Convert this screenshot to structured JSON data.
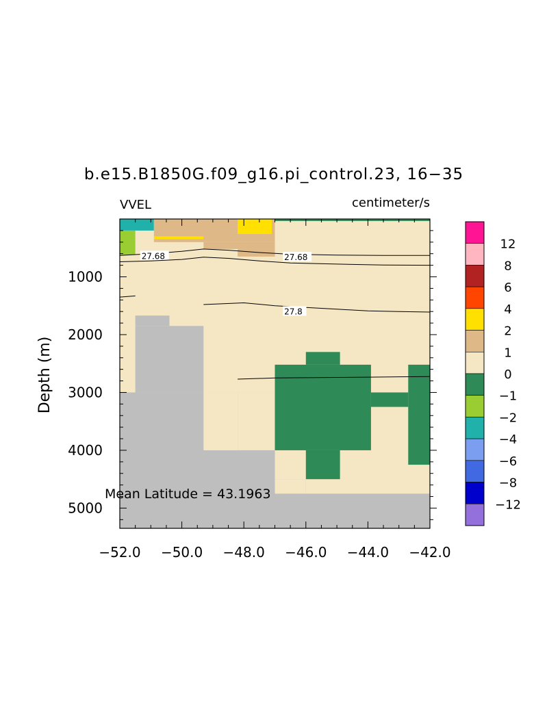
{
  "chart_data": {
    "type": "heatmap",
    "title": "b.e15.B1850G.f09_g16.pi_control.23, 16−35",
    "variable_label": "VVEL",
    "units_label": "centimeter/s",
    "ylabel": "Depth (m)",
    "xlabel": "",
    "annotation": "Mean Latitude = 43.1963",
    "xlim": [
      -52.0,
      -42.0
    ],
    "ylim": [
      5350,
      0
    ],
    "x_ticks": [
      -52.0,
      -50.0,
      -48.0,
      -46.0,
      -44.0,
      -42.0
    ],
    "x_tick_labels": [
      "−52.0",
      "−50.0",
      "−48.0",
      "−46.0",
      "−44.0",
      "−42.0"
    ],
    "y_ticks": [
      1000,
      2000,
      3000,
      4000,
      5000
    ],
    "y_tick_labels": [
      "1000",
      "2000",
      "3000",
      "4000",
      "5000"
    ],
    "grid": false,
    "background_value_color": "#f5e6c4",
    "missing_color": "#bebebe",
    "colorbar": {
      "labels": [
        "12",
        "8",
        "6",
        "4",
        "2",
        "1",
        "0",
        "−1",
        "−2",
        "−4",
        "−6",
        "−8",
        "−12"
      ],
      "colors": [
        "#ff1493",
        "#ffb6c1",
        "#b22222",
        "#ff4500",
        "#ffe000",
        "#deb887",
        "#f5e6c4",
        "#2e8b57",
        "#9acd32",
        "#20b2aa",
        "#7b9ef0",
        "#4169e1",
        "#0000cd",
        "#9370db"
      ]
    },
    "cells": [
      {
        "x": [
          -52.0,
          -50.9
        ],
        "y": [
          0,
          200
        ],
        "color": "#20b2aa"
      },
      {
        "x": [
          -50.9,
          -47.0
        ],
        "y": [
          0,
          400
        ],
        "color": "#deb887"
      },
      {
        "x": [
          -47.0,
          -42.0
        ],
        "y": [
          0,
          35
        ],
        "color": "#2e8b57"
      },
      {
        "x": [
          -50.9,
          -49.3
        ],
        "y": [
          300,
          350
        ],
        "color": "#ffe000"
      },
      {
        "x": [
          -49.3,
          -47.0
        ],
        "y": [
          400,
          520
        ],
        "color": "#deb887"
      },
      {
        "x": [
          -48.2,
          -47.0
        ],
        "y": [
          520,
          650
        ],
        "color": "#deb887"
      },
      {
        "x": [
          -48.2,
          -47.1
        ],
        "y": [
          0,
          260
        ],
        "color": "#ffe000"
      },
      {
        "x": [
          -52.0,
          -51.5
        ],
        "y": [
          200,
          620
        ],
        "color": "#9acd32"
      },
      {
        "x": [
          -52.0,
          -42.0
        ],
        "y": [
          3000,
          5350
        ],
        "color": "#bebebe"
      },
      {
        "x": [
          -51.5,
          -49.3
        ],
        "y": [
          1850,
          3000
        ],
        "color": "#bebebe"
      },
      {
        "x": [
          -51.5,
          -50.4
        ],
        "y": [
          1670,
          1850
        ],
        "color": "#bebebe"
      },
      {
        "x": [
          -49.3,
          -48.2
        ],
        "y": [
          3000,
          4000
        ],
        "color": "#f5e6c4"
      },
      {
        "x": [
          -48.2,
          -47.0
        ],
        "y": [
          3000,
          4000
        ],
        "color": "#f5e6c4"
      },
      {
        "x": [
          -48.2,
          -47.0
        ],
        "y": [
          4000,
          4500
        ],
        "color": "#bebebe"
      },
      {
        "x": [
          -47.0,
          -42.0
        ],
        "y": [
          3000,
          4750
        ],
        "color": "#f5e6c4"
      },
      {
        "x": [
          -47.0,
          -46.0
        ],
        "y": [
          4500,
          4750
        ],
        "color": "#bebebe"
      },
      {
        "x": [
          -47.0,
          -43.9
        ],
        "y": [
          2520,
          4000
        ],
        "color": "#2e8b57"
      },
      {
        "x": [
          -46.0,
          -44.9
        ],
        "y": [
          2300,
          2520
        ],
        "color": "#2e8b57"
      },
      {
        "x": [
          -46.0,
          -44.9
        ],
        "y": [
          4000,
          4500
        ],
        "color": "#2e8b57"
      },
      {
        "x": [
          -43.9,
          -42.7
        ],
        "y": [
          3000,
          3250
        ],
        "color": "#2e8b57"
      },
      {
        "x": [
          -42.7,
          -42.0
        ],
        "y": [
          2520,
          4250
        ],
        "color": "#2e8b57"
      },
      {
        "x": [
          -47.0,
          -46.0
        ],
        "y": [
          4500,
          4750
        ],
        "color": "#f5e6c4"
      }
    ],
    "contours": [
      {
        "label": "27.68",
        "label_x": -51.3,
        "label_y": 560,
        "points": [
          [
            -52.0,
            630
          ],
          [
            -51.0,
            600
          ],
          [
            -50.0,
            560
          ],
          [
            -49.3,
            520
          ],
          [
            -48.5,
            540
          ],
          [
            -47.5,
            580
          ],
          [
            -46.5,
            610
          ],
          [
            -45.0,
            625
          ],
          [
            -43.5,
            630
          ],
          [
            -42.0,
            630
          ]
        ]
      },
      {
        "label": "27.68",
        "label_x": -46.7,
        "label_y": 580,
        "points": [
          [
            -52.0,
            740
          ],
          [
            -51.0,
            725
          ],
          [
            -50.0,
            700
          ],
          [
            -49.3,
            660
          ],
          [
            -48.5,
            680
          ],
          [
            -47.5,
            725
          ],
          [
            -46.5,
            760
          ],
          [
            -45.0,
            780
          ],
          [
            -43.5,
            795
          ],
          [
            -42.0,
            800
          ]
        ]
      },
      {
        "label": "",
        "label_x": null,
        "label_y": null,
        "points": [
          [
            -52.0,
            1350
          ],
          [
            -51.5,
            1330
          ]
        ]
      },
      {
        "label": "27.8",
        "label_x": -46.7,
        "label_y": 1520,
        "points": [
          [
            -49.3,
            1480
          ],
          [
            -48.0,
            1450
          ],
          [
            -47.0,
            1500
          ],
          [
            -46.0,
            1530
          ],
          [
            -45.0,
            1560
          ],
          [
            -44.0,
            1590
          ],
          [
            -43.0,
            1600
          ],
          [
            -42.0,
            1610
          ]
        ]
      },
      {
        "label": "",
        "label_x": null,
        "label_y": null,
        "points": [
          [
            -48.2,
            2770
          ],
          [
            -47.0,
            2750
          ],
          [
            -46.0,
            2745
          ],
          [
            -45.0,
            2740
          ],
          [
            -44.0,
            2735
          ],
          [
            -43.0,
            2730
          ],
          [
            -42.0,
            2725
          ]
        ]
      }
    ]
  }
}
